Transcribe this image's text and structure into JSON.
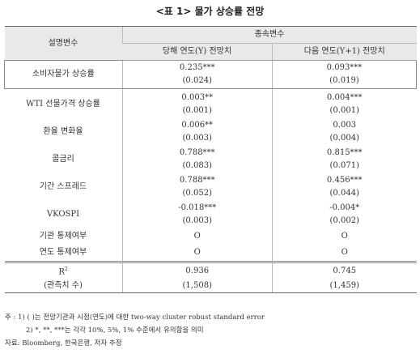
{
  "title": "<표 1> 물가 상승률 전망",
  "table": {
    "header": {
      "explanatory": "설명변수",
      "dependent": "종속변수",
      "col1": "당해 연도(Y) 전망치",
      "col2": "다음 연도(Y+1) 전망치"
    },
    "rows": [
      {
        "label": "소비자물가 상승률",
        "c1": [
          "0.235***",
          "(0.024)"
        ],
        "c2": [
          "0.093***",
          "(0.019)"
        ]
      },
      {
        "label": "WTI 선물가격 상승률",
        "c1": [
          "0.003**",
          "(0.001)"
        ],
        "c2": [
          "0.004***",
          "(0.001)"
        ]
      },
      {
        "label": "환율 변화율",
        "c1": [
          "0.006**",
          "(0.003)"
        ],
        "c2": [
          "0.003",
          "(0.004)"
        ]
      },
      {
        "label": "콜금리",
        "c1": [
          "0.788***",
          "(0.083)"
        ],
        "c2": [
          "0.815***",
          "(0.071)"
        ]
      },
      {
        "label": "기간 스프레드",
        "c1": [
          "0.788***",
          "(0.052)"
        ],
        "c2": [
          "0.456***",
          "(0.044)"
        ]
      },
      {
        "label": "VKOSPI",
        "c1": [
          "-0.018***",
          "(0.003)"
        ],
        "c2": [
          "-0.004*",
          "(0.002)"
        ]
      },
      {
        "label": "기관 통제여부",
        "c1": [
          "O"
        ],
        "c2": [
          "O"
        ]
      },
      {
        "label": "연도 통제여부",
        "c1": [
          "O"
        ],
        "c2": [
          "O"
        ]
      }
    ],
    "r2": {
      "label": "R",
      "sup": "2",
      "c1": "0.936",
      "c2": "0.745"
    },
    "obs": {
      "label": "(관측치 수)",
      "c1": "(1,508)",
      "c2": "(1,459)"
    }
  },
  "notes": {
    "prefix": "주 :",
    "note1": "1) ( )는 전망기관과 시점(연도)에 대한 two-way cluster robust standard error",
    "note2": "2) *, **, ***는 각각 10%, 5%, 1% 수준에서 유의함을 의미",
    "source": "자료: Bloomberg, 한국은행, 저자 추정"
  }
}
